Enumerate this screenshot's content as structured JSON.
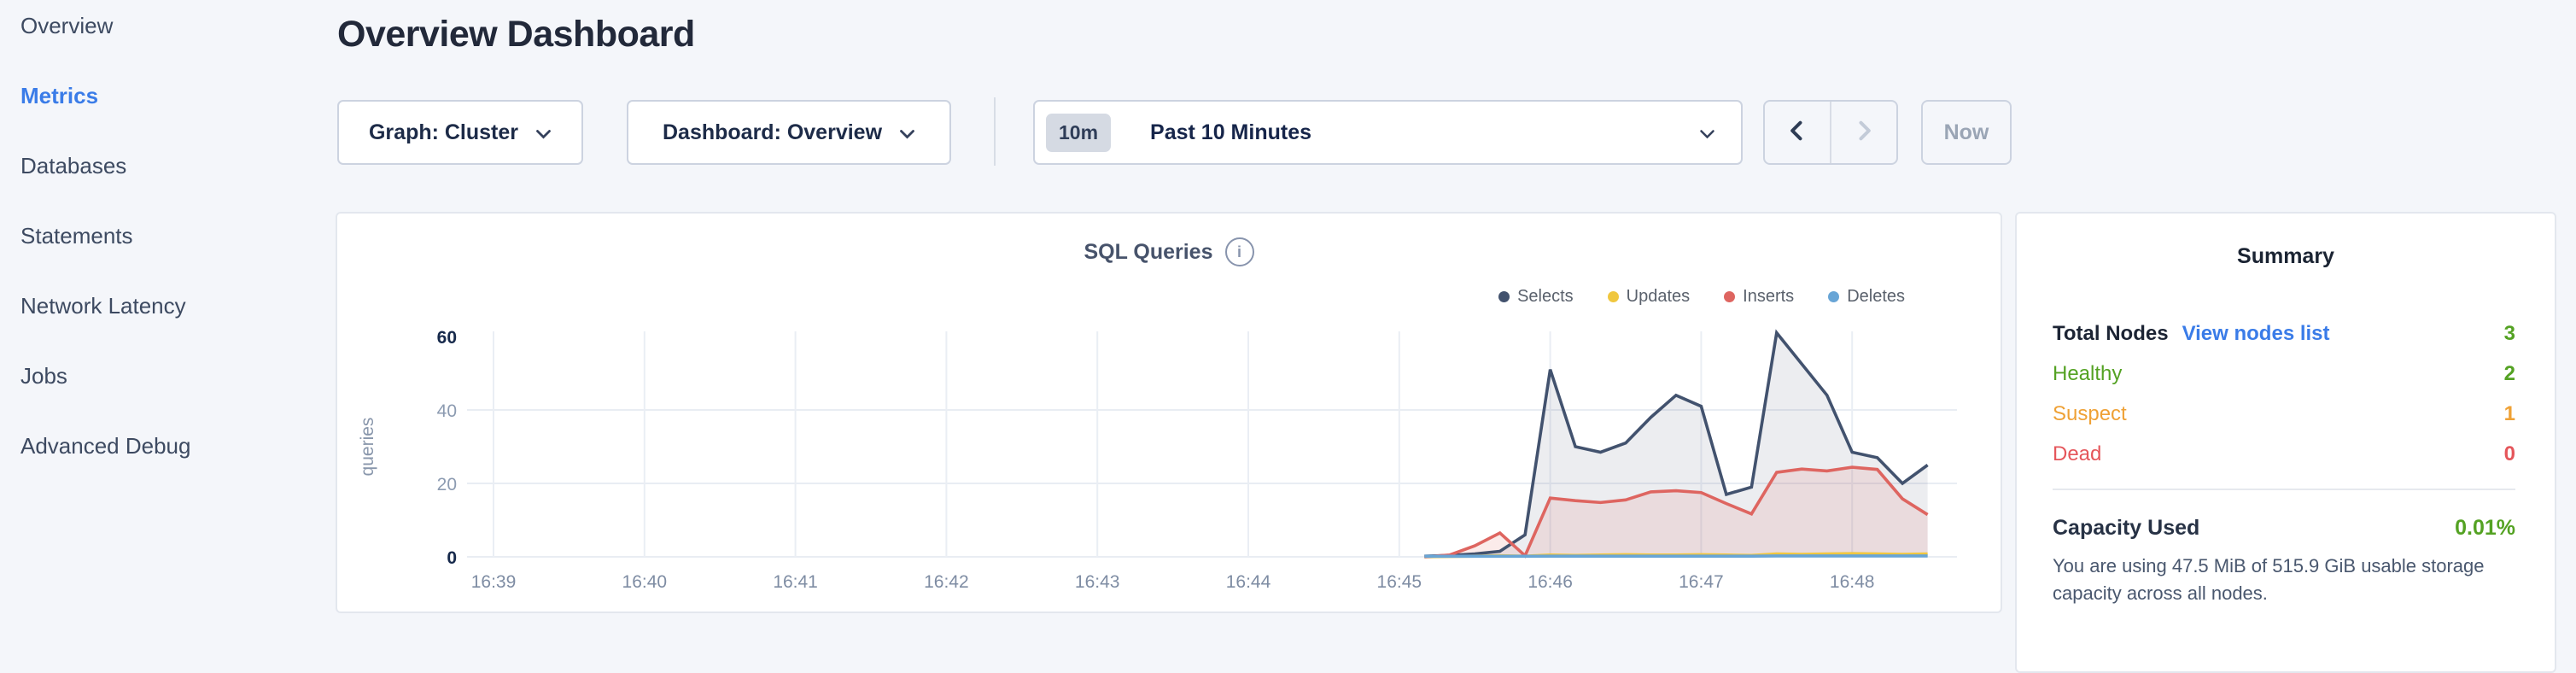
{
  "page": {
    "background": "#f4f6fa"
  },
  "sidebar": {
    "active_color": "#3a7ce8",
    "items": [
      {
        "label": "Overview",
        "active": false
      },
      {
        "label": "Metrics",
        "active": true
      },
      {
        "label": "Databases",
        "active": false
      },
      {
        "label": "Statements",
        "active": false
      },
      {
        "label": "Network Latency",
        "active": false
      },
      {
        "label": "Jobs",
        "active": false
      },
      {
        "label": "Advanced Debug",
        "active": false
      }
    ]
  },
  "header": {
    "title": "Overview Dashboard"
  },
  "toolbar": {
    "graph_label": "Graph: Cluster",
    "dashboard_label": "Dashboard: Overview",
    "time_badge": "10m",
    "time_label": "Past 10 Minutes",
    "now_label": "Now"
  },
  "chart_data": {
    "type": "area",
    "title": "SQL Queries",
    "ylabel": "queries",
    "ylim": [
      0,
      60
    ],
    "yticks": [
      0,
      20,
      40,
      60
    ],
    "grid": true,
    "legend_position": "top-right",
    "x_unit": "seconds after 16:39:00",
    "xticks": [
      {
        "t": 0,
        "label": "16:39"
      },
      {
        "t": 60,
        "label": "16:40"
      },
      {
        "t": 120,
        "label": "16:41"
      },
      {
        "t": 180,
        "label": "16:42"
      },
      {
        "t": 240,
        "label": "16:43"
      },
      {
        "t": 300,
        "label": "16:44"
      },
      {
        "t": 360,
        "label": "16:45"
      },
      {
        "t": 420,
        "label": "16:46"
      },
      {
        "t": 480,
        "label": "16:47"
      },
      {
        "t": 540,
        "label": "16:48"
      }
    ],
    "series": [
      {
        "name": "Selects",
        "color": "#42526e",
        "fill": "rgba(66,82,110,0.10)",
        "points": [
          [
            370,
            0.2
          ],
          [
            380,
            0.4
          ],
          [
            390,
            0.8
          ],
          [
            400,
            1.5
          ],
          [
            410,
            6
          ],
          [
            420,
            51
          ],
          [
            430,
            30
          ],
          [
            440,
            28.5
          ],
          [
            450,
            31
          ],
          [
            460,
            38
          ],
          [
            470,
            44
          ],
          [
            480,
            41
          ],
          [
            490,
            17
          ],
          [
            500,
            19
          ],
          [
            510,
            61
          ],
          [
            520,
            52.5
          ],
          [
            530,
            44
          ],
          [
            540,
            28.5
          ],
          [
            550,
            27
          ],
          [
            560,
            20
          ],
          [
            570,
            25
          ]
        ]
      },
      {
        "name": "Updates",
        "color": "#f0c73f",
        "fill": "rgba(240,199,63,0.25)",
        "points": [
          [
            370,
            0
          ],
          [
            380,
            0.1
          ],
          [
            390,
            0.2
          ],
          [
            400,
            0.3
          ],
          [
            410,
            0.2
          ],
          [
            420,
            0.5
          ],
          [
            430,
            0.4
          ],
          [
            440,
            0.5
          ],
          [
            450,
            0.6
          ],
          [
            460,
            0.5
          ],
          [
            470,
            0.5
          ],
          [
            480,
            0.6
          ],
          [
            490,
            0.5
          ],
          [
            500,
            0.4
          ],
          [
            510,
            0.8
          ],
          [
            520,
            0.7
          ],
          [
            530,
            0.8
          ],
          [
            540,
            0.9
          ],
          [
            550,
            0.8
          ],
          [
            560,
            0.7
          ],
          [
            570,
            0.8
          ]
        ]
      },
      {
        "name": "Inserts",
        "color": "#de6560",
        "fill": "rgba(222,101,96,0.13)",
        "points": [
          [
            370,
            0
          ],
          [
            380,
            0.5
          ],
          [
            390,
            3
          ],
          [
            400,
            6.5
          ],
          [
            410,
            0.3
          ],
          [
            420,
            16
          ],
          [
            430,
            15.3
          ],
          [
            440,
            14.8
          ],
          [
            450,
            15.5
          ],
          [
            460,
            17.7
          ],
          [
            470,
            18
          ],
          [
            480,
            17.5
          ],
          [
            490,
            14.5
          ],
          [
            500,
            11.7
          ],
          [
            510,
            23
          ],
          [
            520,
            23.9
          ],
          [
            530,
            23.4
          ],
          [
            540,
            24.4
          ],
          [
            550,
            23.8
          ],
          [
            560,
            15.8
          ],
          [
            570,
            11.5
          ]
        ]
      },
      {
        "name": "Deletes",
        "color": "#68a5d6",
        "fill": "none",
        "points": [
          [
            370,
            0.15
          ],
          [
            380,
            0.15
          ],
          [
            390,
            0.15
          ],
          [
            400,
            0.15
          ],
          [
            410,
            0.15
          ],
          [
            420,
            0.2
          ],
          [
            430,
            0.2
          ],
          [
            440,
            0.2
          ],
          [
            450,
            0.2
          ],
          [
            460,
            0.2
          ],
          [
            470,
            0.2
          ],
          [
            480,
            0.2
          ],
          [
            490,
            0.2
          ],
          [
            500,
            0.2
          ],
          [
            510,
            0.25
          ],
          [
            520,
            0.25
          ],
          [
            530,
            0.25
          ],
          [
            540,
            0.25
          ],
          [
            550,
            0.25
          ],
          [
            560,
            0.25
          ],
          [
            570,
            0.25
          ]
        ]
      }
    ]
  },
  "summary": {
    "title": "Summary",
    "rows": [
      {
        "label": "Total Nodes",
        "link": "View nodes list",
        "value": "3",
        "label_color": "#1c2434",
        "value_color": "#54a223"
      },
      {
        "label": "Healthy",
        "value": "2",
        "label_color": "#54a223",
        "value_color": "#54a223"
      },
      {
        "label": "Suspect",
        "value": "1",
        "label_color": "#efa135",
        "value_color": "#efa135"
      },
      {
        "label": "Dead",
        "value": "0",
        "label_color": "#e5565b",
        "value_color": "#e5565b"
      }
    ],
    "capacity_label": "Capacity Used",
    "capacity_value": "0.01%",
    "capacity_value_color": "#54a223",
    "description": "You are using 47.5 MiB of 515.9 GiB usable storage capacity across all nodes."
  }
}
